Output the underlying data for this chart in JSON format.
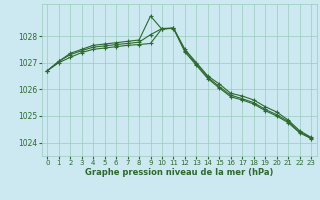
{
  "xlabel": "Graphe pression niveau de la mer (hPa)",
  "background_color": "#cce8f0",
  "grid_color": "#99ccbb",
  "line_color": "#2d6a2d",
  "ylim": [
    1023.5,
    1029.2
  ],
  "xlim": [
    -0.5,
    23.5
  ],
  "yticks": [
    1024,
    1025,
    1026,
    1027,
    1028
  ],
  "xticks": [
    0,
    1,
    2,
    3,
    4,
    5,
    6,
    7,
    8,
    9,
    10,
    11,
    12,
    13,
    14,
    15,
    16,
    17,
    18,
    19,
    20,
    21,
    22,
    23
  ],
  "series": [
    [
      1026.7,
      1027.05,
      1027.35,
      1027.5,
      1027.65,
      1027.7,
      1027.75,
      1027.8,
      1027.85,
      1028.75,
      1028.25,
      1028.3,
      1027.5,
      1027.0,
      1026.5,
      1026.2,
      1025.85,
      1025.75,
      1025.6,
      1025.35,
      1025.15,
      1024.85,
      1024.45,
      1024.2
    ],
    [
      1026.7,
      1027.05,
      1027.3,
      1027.45,
      1027.58,
      1027.63,
      1027.68,
      1027.72,
      1027.77,
      1028.05,
      1028.28,
      1028.3,
      1027.45,
      1026.95,
      1026.45,
      1026.1,
      1025.78,
      1025.65,
      1025.5,
      1025.25,
      1025.05,
      1024.8,
      1024.4,
      1024.18
    ],
    [
      1026.7,
      1027.0,
      1027.2,
      1027.38,
      1027.5,
      1027.55,
      1027.6,
      1027.65,
      1027.68,
      1027.72,
      1028.28,
      1028.28,
      1027.4,
      1026.9,
      1026.4,
      1026.05,
      1025.72,
      1025.6,
      1025.45,
      1025.2,
      1025.0,
      1024.75,
      1024.37,
      1024.15
    ]
  ]
}
